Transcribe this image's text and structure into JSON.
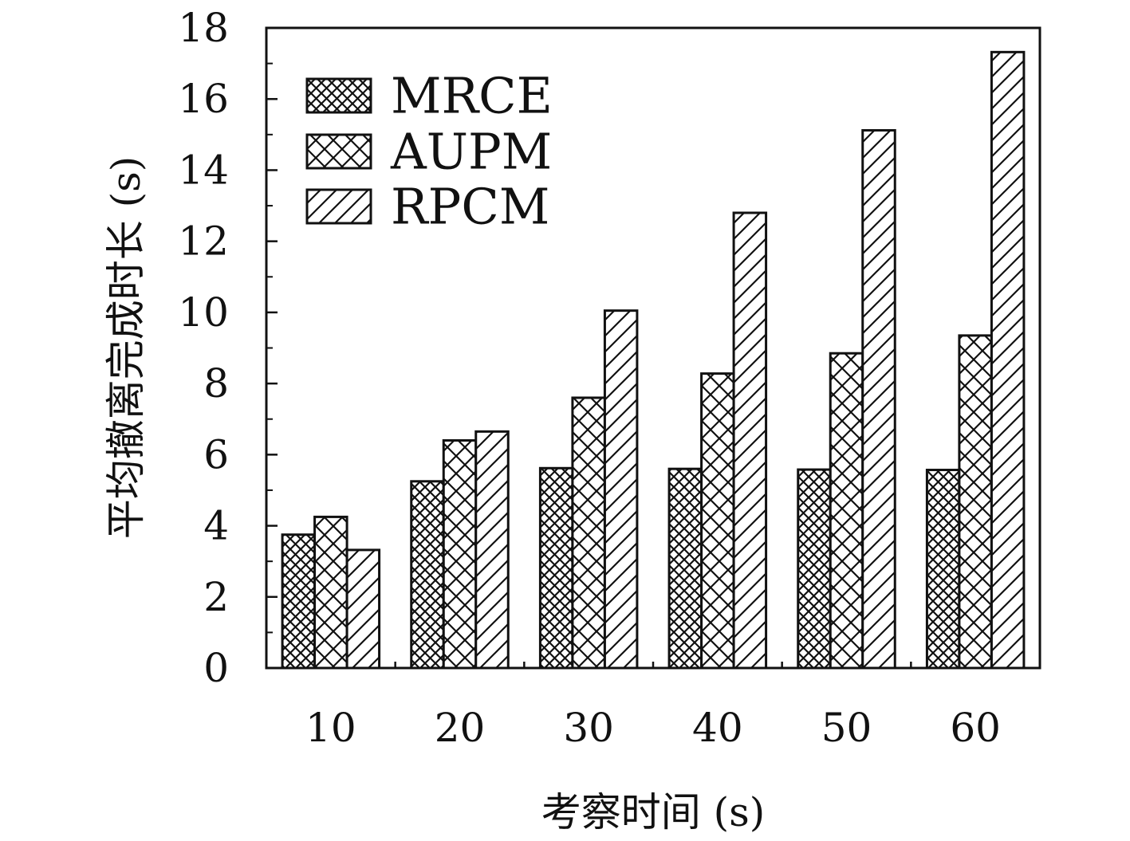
{
  "chart_data": {
    "type": "bar",
    "categories": [
      "10",
      "20",
      "30",
      "40",
      "50",
      "60"
    ],
    "series": [
      {
        "name": "MRCE",
        "pattern": "crosshatch-fine",
        "values": [
          3.75,
          5.25,
          5.62,
          5.6,
          5.58,
          5.57
        ]
      },
      {
        "name": "AUPM",
        "pattern": "crosshatch-coarse",
        "values": [
          4.25,
          6.4,
          7.6,
          8.28,
          8.85,
          9.35
        ]
      },
      {
        "name": "RPCM",
        "pattern": "diagonal-hatch",
        "values": [
          3.32,
          6.65,
          10.05,
          12.8,
          15.12,
          17.32
        ]
      }
    ],
    "xlabel": "考察时间 (s)",
    "ylabel": "平均撤离完成时长 (s)",
    "ylim": [
      0,
      18
    ],
    "yticks": [
      "0",
      "2",
      "4",
      "6",
      "8",
      "10",
      "12",
      "14",
      "16",
      "18"
    ],
    "grid": false,
    "legend_position": "top-left",
    "colors": {
      "ink": "#111111",
      "background": "#ffffff"
    }
  }
}
